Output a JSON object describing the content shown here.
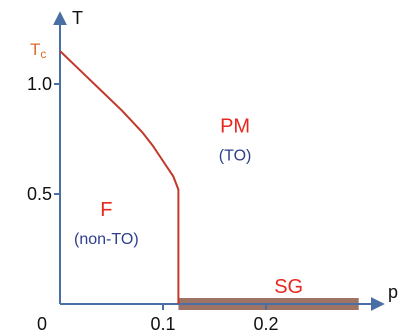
{
  "colors": {
    "axis": "#4a6fa5",
    "boundary": "#c0392b",
    "region_primary": "#e8281e",
    "region_secondary": "#2e3f8c",
    "tc_label": "#e06b2a",
    "sg_band": "#8b5a4a",
    "text": "#111111"
  },
  "chart_data": {
    "type": "line",
    "xlabel": "p",
    "ylabel": "T",
    "xlim": [
      0,
      0.3
    ],
    "ylim": [
      0,
      1.3
    ],
    "x_ticks": [
      {
        "value": 0.1,
        "label": "0.1"
      },
      {
        "value": 0.2,
        "label": "0.2"
      }
    ],
    "y_ticks": [
      {
        "value": 1.0,
        "label": "1.0"
      },
      {
        "value": 0.5,
        "label": "0.5"
      }
    ],
    "origin_label": "0",
    "tc": {
      "value": 1.15,
      "label": "Tc"
    },
    "series": [
      {
        "x": [
          0.0,
          0.02,
          0.04,
          0.06,
          0.08,
          0.09,
          0.1,
          0.11,
          0.115,
          0.115
        ],
        "y": [
          1.15,
          1.06,
          0.97,
          0.88,
          0.78,
          0.72,
          0.65,
          0.58,
          0.52,
          0.0
        ]
      }
    ],
    "sg_band": {
      "x": [
        0.115,
        0.29
      ],
      "y": 0.0
    },
    "regions": [
      {
        "label": "PM",
        "sublabel": "(TO)",
        "x": 0.17,
        "y": 0.78
      },
      {
        "label": "F",
        "sublabel": "(non-TO)",
        "x": 0.045,
        "y": 0.4
      },
      {
        "label": "SG",
        "sublabel": "",
        "x": 0.222,
        "y": 0.05
      }
    ]
  }
}
